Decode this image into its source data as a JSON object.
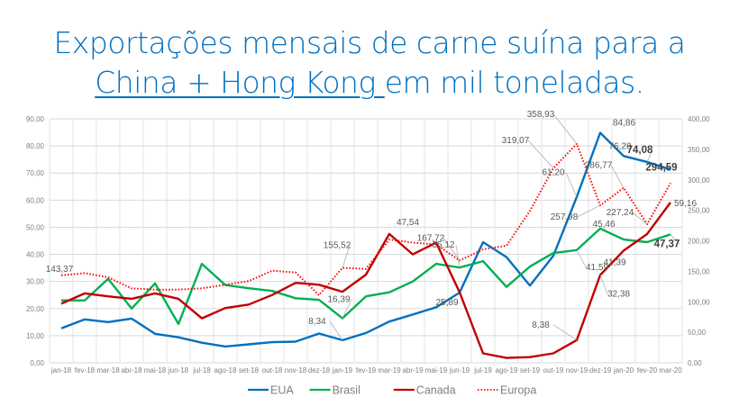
{
  "title": {
    "line1": "Exportações mensais de carne suína para a",
    "line2_underlined": "China + Hong Kong ",
    "line2_rest": "em mil toneladas."
  },
  "chart_data": {
    "type": "line",
    "title": "Exportações mensais de carne suína para a China + Hong Kong em mil toneladas.",
    "categories": [
      "jan-18",
      "fev-18",
      "mar-18",
      "abr-18",
      "mai-18",
      "jun-18",
      "jul-18",
      "ago-18",
      "set-18",
      "out-18",
      "nov-18",
      "dez-18",
      "jan-19",
      "fev-19",
      "mar-19",
      "abr-19",
      "mai-19",
      "jun-19",
      "jul-19",
      "ago-19",
      "set-19",
      "out-19",
      "nov-19",
      "dez-19",
      "jan-20",
      "fev-20",
      "mar-20"
    ],
    "y_left": {
      "range": [
        0,
        90
      ],
      "step": 10,
      "tick_labels": [
        "0,00",
        "10,00",
        "20,00",
        "30,00",
        "40,00",
        "50,00",
        "60,00",
        "70,00",
        "80,00",
        "90,00"
      ]
    },
    "y_right": {
      "range": [
        0,
        400
      ],
      "step": 50,
      "tick_labels": [
        "0,00",
        "50,00",
        "100,00",
        "150,00",
        "200,00",
        "250,00",
        "300,00",
        "350,00",
        "400,00"
      ]
    },
    "grid": true,
    "legend_position": "bottom",
    "series": [
      {
        "name": "EUA",
        "color": "#0070C0",
        "axis": "left",
        "style": "solid",
        "values": [
          12.7,
          16.0,
          15.0,
          16.3,
          10.7,
          9.4,
          7.4,
          6.0,
          6.8,
          7.6,
          7.8,
          10.8,
          8.34,
          11.0,
          15.2,
          17.8,
          20.5,
          25.89,
          44.5,
          39.0,
          28.5,
          39.5,
          61.2,
          84.86,
          76.28,
          74.08,
          71.3
        ]
      },
      {
        "name": "Brasil",
        "color": "#00B050",
        "axis": "left",
        "style": "solid",
        "values": [
          23.0,
          23.0,
          31.0,
          20.0,
          29.3,
          14.3,
          36.5,
          28.7,
          27.5,
          26.5,
          23.8,
          23.2,
          16.39,
          24.5,
          26.0,
          30.0,
          36.5,
          35.12,
          37.5,
          28.0,
          35.5,
          40.5,
          41.59,
          49.5,
          45.46,
          44.5,
          47.37
        ]
      },
      {
        "name": "Canada",
        "color": "#C00000",
        "axis": "left",
        "style": "solid",
        "values": [
          21.8,
          25.6,
          24.5,
          23.6,
          25.6,
          23.6,
          16.4,
          20.2,
          21.5,
          25.0,
          29.5,
          28.8,
          26.2,
          32.5,
          47.54,
          40.0,
          44.3,
          26.0,
          3.5,
          1.8,
          2.1,
          3.5,
          8.38,
          32.38,
          41.39,
          47.5,
          59.16
        ]
      },
      {
        "name": "Europa",
        "color": "#FF0000",
        "axis": "right",
        "style": "dotted",
        "values": [
          143.37,
          147,
          140,
          122,
          120,
          120,
          122,
          128,
          134,
          151,
          148,
          111,
          155.52,
          154,
          202,
          197,
          194,
          167.72,
          186,
          192,
          249,
          319.07,
          358.93,
          257.98,
          286.77,
          227.24,
          294.59
        ]
      }
    ],
    "annotations": [
      {
        "series": 3,
        "index": 0,
        "text": "143,37"
      },
      {
        "series": 0,
        "index": 12,
        "text": "8,34"
      },
      {
        "series": 1,
        "index": 12,
        "text": "16,39"
      },
      {
        "series": 3,
        "index": 12,
        "text": "155,52"
      },
      {
        "series": 2,
        "index": 14,
        "text": "47,54"
      },
      {
        "series": 3,
        "index": 17,
        "text": "167,72"
      },
      {
        "series": 1,
        "index": 17,
        "text": "35,12"
      },
      {
        "series": 0,
        "index": 17,
        "text": "25,89"
      },
      {
        "series": 3,
        "index": 21,
        "text": "319,07"
      },
      {
        "series": 3,
        "index": 22,
        "text": "358,93"
      },
      {
        "series": 2,
        "index": 22,
        "text": "8,38"
      },
      {
        "series": 0,
        "index": 22,
        "text": "61,20"
      },
      {
        "series": 1,
        "index": 22,
        "text": "41,59"
      },
      {
        "series": 3,
        "index": 23,
        "text": "257,98"
      },
      {
        "series": 0,
        "index": 23,
        "text": "84,86"
      },
      {
        "series": 2,
        "index": 23,
        "text": "32,38"
      },
      {
        "series": 0,
        "index": 24,
        "text": "76,28"
      },
      {
        "series": 3,
        "index": 24,
        "text": "286,77"
      },
      {
        "series": 1,
        "index": 24,
        "text": "45,46"
      },
      {
        "series": 2,
        "index": 24,
        "text": "41,39"
      },
      {
        "series": 3,
        "index": 25,
        "text": "227,24"
      },
      {
        "series": 0,
        "index": 25,
        "text": "74,08",
        "bold": true
      },
      {
        "series": 3,
        "index": 26,
        "text": "294,59",
        "bold": true
      },
      {
        "series": 2,
        "index": 26,
        "text": "59,16",
        "big": true
      },
      {
        "series": 1,
        "index": 26,
        "text": "47,37",
        "bold": true
      }
    ]
  }
}
